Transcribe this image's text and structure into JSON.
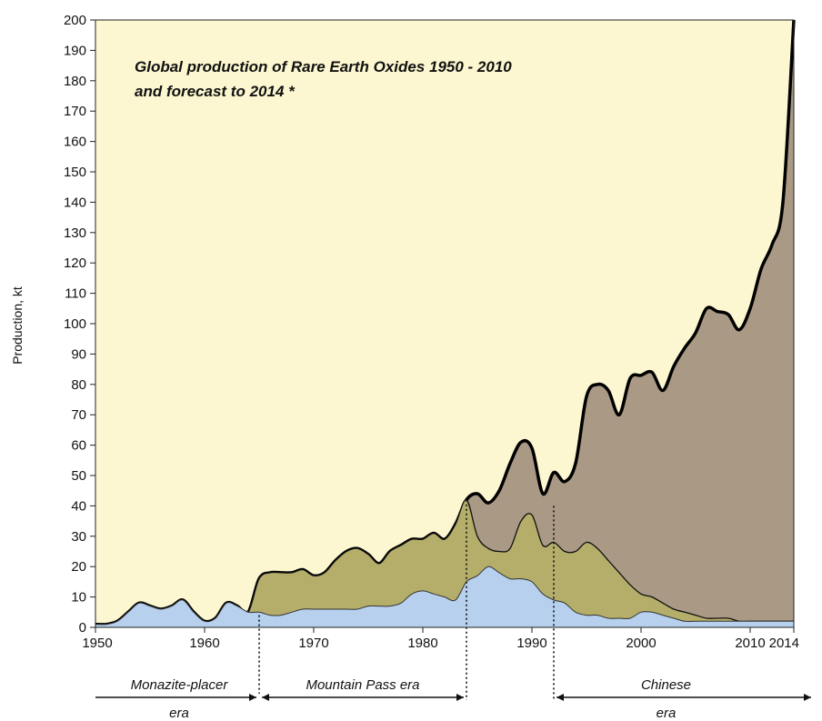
{
  "chart_data": {
    "type": "area",
    "title": "Global production of Rare Earth Oxides 1950 - 2010",
    "subtitle": "and forecast to 2014 *",
    "ylabel": "Production, kt",
    "xlabel": "",
    "xlim": [
      1950,
      2014
    ],
    "ylim": [
      0,
      200
    ],
    "x_ticks": [
      1950,
      1960,
      1970,
      1980,
      1990,
      2000,
      2010,
      2014
    ],
    "y_ticks": [
      0,
      10,
      20,
      30,
      40,
      50,
      60,
      70,
      80,
      90,
      100,
      110,
      120,
      130,
      140,
      150,
      160,
      170,
      180,
      190,
      200
    ],
    "grid": false,
    "legend": "none",
    "colors": {
      "background": "#fcf7d0",
      "total_fill": "#a99985",
      "middle_fill": "#b4ae6a",
      "bottom_fill": "#b7d0ee"
    },
    "x": [
      1950,
      1951,
      1952,
      1953,
      1954,
      1955,
      1956,
      1957,
      1958,
      1959,
      1960,
      1961,
      1962,
      1963,
      1964,
      1965,
      1966,
      1967,
      1968,
      1969,
      1970,
      1971,
      1972,
      1973,
      1974,
      1975,
      1976,
      1977,
      1978,
      1979,
      1980,
      1981,
      1982,
      1983,
      1984,
      1985,
      1986,
      1987,
      1988,
      1989,
      1990,
      1991,
      1992,
      1993,
      1994,
      1995,
      1996,
      1997,
      1998,
      1999,
      2000,
      2001,
      2002,
      2003,
      2004,
      2005,
      2006,
      2007,
      2008,
      2009,
      2010,
      2011,
      2012,
      2013,
      2014
    ],
    "series": [
      {
        "values": [
          1,
          1,
          2,
          5,
          8,
          7,
          6,
          7,
          9,
          5,
          2,
          3,
          8,
          7,
          5,
          16,
          18,
          18,
          18,
          19,
          17,
          18,
          22,
          25,
          26,
          24,
          21,
          25,
          27,
          29,
          29,
          31,
          29,
          34,
          42,
          44,
          41,
          45,
          54,
          61,
          59,
          44,
          51,
          48,
          54,
          76,
          80,
          78,
          70,
          82,
          83,
          84,
          78,
          86,
          92,
          97,
          105,
          104,
          103,
          98,
          105,
          118,
          126,
          140,
          200
        ]
      },
      {
        "values": [
          1,
          1,
          2,
          5,
          8,
          7,
          6,
          7,
          9,
          5,
          2,
          3,
          8,
          7,
          5,
          16,
          18,
          18,
          18,
          19,
          17,
          18,
          22,
          25,
          26,
          24,
          21,
          25,
          27,
          29,
          29,
          31,
          29,
          34,
          42,
          30,
          26,
          25,
          26,
          35,
          37,
          27,
          28,
          25,
          25,
          28,
          26,
          22,
          18,
          14,
          11,
          10,
          8,
          6,
          5,
          4,
          3,
          3,
          3,
          2,
          2,
          2,
          2,
          2,
          2
        ]
      },
      {
        "values": [
          1,
          1,
          2,
          5,
          8,
          7,
          6,
          7,
          9,
          5,
          2,
          3,
          8,
          7,
          5,
          5,
          4,
          4,
          5,
          6,
          6,
          6,
          6,
          6,
          6,
          7,
          7,
          7,
          8,
          11,
          12,
          11,
          10,
          9,
          15,
          17,
          20,
          18,
          16,
          16,
          15,
          11,
          9,
          8,
          5,
          4,
          4,
          3,
          3,
          3,
          5,
          5,
          4,
          3,
          2,
          2,
          2,
          2,
          2,
          2,
          2,
          2,
          2,
          2,
          2
        ]
      }
    ],
    "era_dividers": [
      1965,
      1984,
      1992
    ],
    "eras": [
      {
        "line1": "Monazite-placer",
        "line2": "era"
      },
      {
        "line1": "Mountain Pass era",
        "line2": ""
      },
      {
        "line1": "Chinese",
        "line2": "era"
      }
    ]
  }
}
